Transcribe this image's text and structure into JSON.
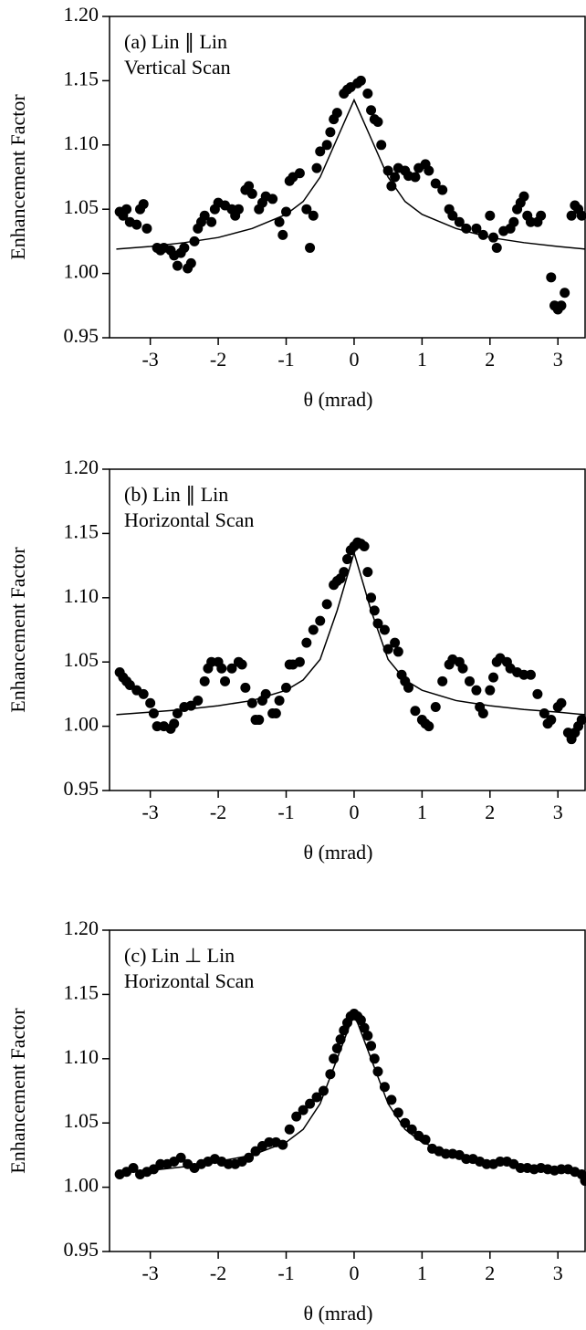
{
  "chart_data": [
    {
      "type": "scatter",
      "annotation": [
        "(a) Lin ∥ Lin",
        "Vertical Scan"
      ],
      "ylabel": "Enhancement Factor",
      "xlabel": "θ (mrad)",
      "xlim": [
        -3.6,
        3.4
      ],
      "ylim": [
        0.95,
        1.2
      ],
      "xticks": [
        -3,
        -2,
        -1,
        0,
        1,
        2,
        3
      ],
      "yticks": [
        0.95,
        {
          "value": 1.0,
          "label": "1.00"
        },
        1.05,
        {
          "value": 1.1,
          "label": "1.10"
        },
        1.15,
        {
          "value": 1.2,
          "label": "1.20"
        }
      ],
      "series": [
        {
          "mode": "markers",
          "color": "#000000",
          "x": [
            -3.45,
            -3.4,
            -3.35,
            -3.3,
            -3.2,
            -3.15,
            -3.1,
            -3.05,
            -2.9,
            -2.85,
            -2.8,
            -2.7,
            -2.65,
            -2.6,
            -2.55,
            -2.5,
            -2.45,
            -2.4,
            -2.35,
            -2.3,
            -2.25,
            -2.2,
            -2.1,
            -2.05,
            -2.0,
            -1.9,
            -1.8,
            -1.75,
            -1.7,
            -1.6,
            -1.55,
            -1.5,
            -1.4,
            -1.35,
            -1.3,
            -1.2,
            -1.1,
            -1.05,
            -1.0,
            -0.95,
            -0.9,
            -0.8,
            -0.7,
            -0.65,
            -0.6,
            -0.55,
            -0.5,
            -0.4,
            -0.35,
            -0.3,
            -0.25,
            -0.15,
            -0.1,
            -0.05,
            0.05,
            0.1,
            0.2,
            0.25,
            0.3,
            0.35,
            0.4,
            0.5,
            0.55,
            0.6,
            0.65,
            0.75,
            0.8,
            0.9,
            0.95,
            1.05,
            1.1,
            1.2,
            1.3,
            1.4,
            1.45,
            1.55,
            1.65,
            1.8,
            1.9,
            2.0,
            2.05,
            2.1,
            2.2,
            2.3,
            2.35,
            2.4,
            2.45,
            2.5,
            2.55,
            2.6,
            2.7,
            2.75,
            2.9,
            2.95,
            3.0,
            3.05,
            3.1,
            3.2,
            3.25,
            3.3,
            3.35
          ],
          "values": [
            1.048,
            1.045,
            1.05,
            1.04,
            1.038,
            1.05,
            1.054,
            1.035,
            1.02,
            1.018,
            1.02,
            1.018,
            1.014,
            1.006,
            1.016,
            1.02,
            1.004,
            1.008,
            1.025,
            1.035,
            1.04,
            1.045,
            1.04,
            1.05,
            1.055,
            1.053,
            1.05,
            1.045,
            1.05,
            1.065,
            1.068,
            1.062,
            1.05,
            1.055,
            1.06,
            1.058,
            1.04,
            1.03,
            1.048,
            1.072,
            1.075,
            1.078,
            1.05,
            1.02,
            1.045,
            1.082,
            1.095,
            1.1,
            1.11,
            1.12,
            1.125,
            1.14,
            1.143,
            1.145,
            1.148,
            1.15,
            1.14,
            1.127,
            1.12,
            1.118,
            1.1,
            1.08,
            1.068,
            1.075,
            1.082,
            1.08,
            1.076,
            1.075,
            1.082,
            1.085,
            1.08,
            1.07,
            1.065,
            1.05,
            1.045,
            1.04,
            1.035,
            1.035,
            1.03,
            1.045,
            1.028,
            1.02,
            1.033,
            1.035,
            1.04,
            1.05,
            1.055,
            1.06,
            1.045,
            1.04,
            1.04,
            1.045,
            0.997,
            0.975,
            0.972,
            0.975,
            0.985,
            1.045,
            1.053,
            1.05,
            1.045
          ]
        },
        {
          "mode": "lines",
          "color": "#000000",
          "x": [
            -3.5,
            -3,
            -2.5,
            -2,
            -1.5,
            -1,
            -0.75,
            -0.5,
            -0.25,
            0,
            0.25,
            0.5,
            0.75,
            1,
            1.5,
            2,
            2.5,
            3,
            3.4
          ],
          "values": [
            1.019,
            1.021,
            1.024,
            1.028,
            1.035,
            1.046,
            1.056,
            1.075,
            1.105,
            1.135,
            1.105,
            1.075,
            1.056,
            1.046,
            1.035,
            1.028,
            1.024,
            1.021,
            1.019
          ]
        }
      ]
    },
    {
      "type": "scatter",
      "annotation": [
        "(b) Lin ∥ Lin",
        "Horizontal Scan"
      ],
      "ylabel": "Enhancement Factor",
      "xlabel": "θ (mrad)",
      "xlim": [
        -3.6,
        3.4
      ],
      "ylim": [
        0.95,
        1.2
      ],
      "xticks": [
        -3,
        -2,
        -1,
        0,
        1,
        2,
        3
      ],
      "yticks": [
        0.95,
        {
          "value": 1.0,
          "label": "1.00"
        },
        1.05,
        {
          "value": 1.1,
          "label": "1.10"
        },
        1.15,
        {
          "value": 1.2,
          "label": "1.20"
        }
      ],
      "series": [
        {
          "mode": "markers",
          "color": "#000000",
          "x": [
            -3.45,
            -3.4,
            -3.35,
            -3.3,
            -3.2,
            -3.1,
            -3.0,
            -2.95,
            -2.9,
            -2.8,
            -2.7,
            -2.65,
            -2.6,
            -2.5,
            -2.4,
            -2.3,
            -2.2,
            -2.15,
            -2.1,
            -2.0,
            -1.95,
            -1.9,
            -1.8,
            -1.7,
            -1.65,
            -1.6,
            -1.5,
            -1.45,
            -1.4,
            -1.35,
            -1.3,
            -1.2,
            -1.15,
            -1.1,
            -1.0,
            -0.95,
            -0.9,
            -0.8,
            -0.7,
            -0.6,
            -0.5,
            -0.4,
            -0.3,
            -0.25,
            -0.2,
            -0.15,
            -0.1,
            -0.05,
            0.0,
            0.05,
            0.1,
            0.15,
            0.2,
            0.25,
            0.3,
            0.35,
            0.45,
            0.5,
            0.6,
            0.65,
            0.7,
            0.75,
            0.8,
            0.9,
            1.0,
            1.05,
            1.1,
            1.2,
            1.3,
            1.4,
            1.45,
            1.55,
            1.6,
            1.7,
            1.8,
            1.85,
            1.9,
            2.0,
            2.05,
            2.1,
            2.15,
            2.25,
            2.3,
            2.4,
            2.5,
            2.6,
            2.7,
            2.8,
            2.85,
            2.9,
            3.0,
            3.05,
            3.15,
            3.2,
            3.25,
            3.3,
            3.35
          ],
          "values": [
            1.042,
            1.038,
            1.035,
            1.032,
            1.028,
            1.025,
            1.018,
            1.01,
            1.0,
            1.0,
            0.998,
            1.002,
            1.01,
            1.015,
            1.016,
            1.02,
            1.035,
            1.045,
            1.05,
            1.05,
            1.045,
            1.035,
            1.045,
            1.05,
            1.048,
            1.03,
            1.018,
            1.005,
            1.005,
            1.02,
            1.025,
            1.01,
            1.01,
            1.02,
            1.03,
            1.048,
            1.048,
            1.05,
            1.065,
            1.075,
            1.082,
            1.095,
            1.11,
            1.113,
            1.115,
            1.12,
            1.13,
            1.137,
            1.14,
            1.143,
            1.142,
            1.14,
            1.12,
            1.1,
            1.09,
            1.08,
            1.075,
            1.06,
            1.065,
            1.058,
            1.04,
            1.035,
            1.03,
            1.012,
            1.005,
            1.002,
            1.0,
            1.015,
            1.035,
            1.048,
            1.052,
            1.05,
            1.045,
            1.035,
            1.028,
            1.015,
            1.01,
            1.028,
            1.038,
            1.05,
            1.053,
            1.05,
            1.045,
            1.042,
            1.04,
            1.04,
            1.025,
            1.01,
            1.002,
            1.005,
            1.015,
            1.018,
            0.995,
            0.99,
            0.995,
            1.0,
            1.005
          ]
        },
        {
          "mode": "lines",
          "color": "#000000",
          "x": [
            -3.5,
            -3,
            -2.5,
            -2,
            -1.5,
            -1,
            -0.75,
            -0.5,
            -0.25,
            0,
            0.25,
            0.5,
            0.75,
            1,
            1.5,
            2,
            2.5,
            3,
            3.4
          ],
          "values": [
            1.009,
            1.011,
            1.013,
            1.016,
            1.02,
            1.028,
            1.036,
            1.052,
            1.09,
            1.135,
            1.09,
            1.052,
            1.036,
            1.028,
            1.02,
            1.016,
            1.013,
            1.011,
            1.009
          ]
        }
      ]
    },
    {
      "type": "scatter",
      "annotation": [
        "(c) Lin ⊥ Lin",
        "Horizontal Scan"
      ],
      "ylabel": "Enhancement Factor",
      "xlabel": "θ (mrad)",
      "xlim": [
        -3.6,
        3.4
      ],
      "ylim": [
        0.95,
        1.2
      ],
      "xticks": [
        -3,
        -2,
        -1,
        0,
        1,
        2,
        3
      ],
      "yticks": [
        0.95,
        {
          "value": 1.0,
          "label": "1.00"
        },
        1.05,
        {
          "value": 1.1,
          "label": "1.10"
        },
        1.15,
        {
          "value": 1.2,
          "label": "1.20"
        }
      ],
      "series": [
        {
          "mode": "markers",
          "color": "#000000",
          "x": [
            -3.45,
            -3.35,
            -3.25,
            -3.15,
            -3.05,
            -2.95,
            -2.85,
            -2.75,
            -2.65,
            -2.55,
            -2.45,
            -2.35,
            -2.25,
            -2.15,
            -2.05,
            -1.95,
            -1.85,
            -1.75,
            -1.65,
            -1.55,
            -1.45,
            -1.35,
            -1.25,
            -1.15,
            -1.05,
            -0.95,
            -0.85,
            -0.75,
            -0.65,
            -0.55,
            -0.45,
            -0.35,
            -0.3,
            -0.25,
            -0.2,
            -0.15,
            -0.1,
            -0.05,
            0.0,
            0.05,
            0.1,
            0.15,
            0.2,
            0.25,
            0.3,
            0.35,
            0.45,
            0.55,
            0.65,
            0.75,
            0.85,
            0.95,
            1.05,
            1.15,
            1.25,
            1.35,
            1.45,
            1.55,
            1.65,
            1.75,
            1.85,
            1.95,
            2.05,
            2.15,
            2.25,
            2.35,
            2.45,
            2.55,
            2.65,
            2.75,
            2.85,
            2.95,
            3.05,
            3.15,
            3.25,
            3.35,
            3.4
          ],
          "values": [
            1.01,
            1.012,
            1.015,
            1.01,
            1.012,
            1.014,
            1.018,
            1.018,
            1.02,
            1.023,
            1.018,
            1.015,
            1.018,
            1.02,
            1.022,
            1.02,
            1.018,
            1.018,
            1.02,
            1.023,
            1.028,
            1.032,
            1.035,
            1.035,
            1.033,
            1.045,
            1.055,
            1.06,
            1.065,
            1.07,
            1.075,
            1.088,
            1.1,
            1.108,
            1.115,
            1.122,
            1.128,
            1.133,
            1.135,
            1.133,
            1.13,
            1.124,
            1.118,
            1.11,
            1.1,
            1.09,
            1.078,
            1.068,
            1.058,
            1.05,
            1.045,
            1.04,
            1.037,
            1.03,
            1.028,
            1.026,
            1.026,
            1.025,
            1.022,
            1.022,
            1.02,
            1.018,
            1.018,
            1.02,
            1.02,
            1.018,
            1.015,
            1.015,
            1.014,
            1.015,
            1.014,
            1.013,
            1.014,
            1.014,
            1.012,
            1.01,
            1.005
          ]
        },
        {
          "mode": "lines",
          "color": "#000000",
          "x": [
            -3.5,
            -3,
            -2.5,
            -2,
            -1.5,
            -1,
            -0.75,
            -0.5,
            -0.25,
            0,
            0.25,
            0.5,
            0.75,
            1,
            1.5,
            2,
            2.5,
            3,
            3.4
          ],
          "values": [
            1.011,
            1.013,
            1.016,
            1.02,
            1.025,
            1.035,
            1.045,
            1.065,
            1.1,
            1.135,
            1.1,
            1.065,
            1.045,
            1.035,
            1.025,
            1.02,
            1.016,
            1.013,
            1.011
          ]
        }
      ]
    }
  ]
}
